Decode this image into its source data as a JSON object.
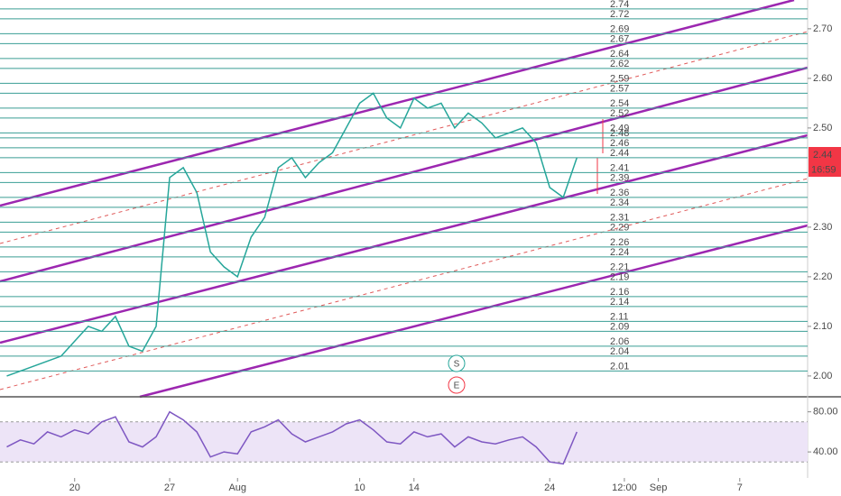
{
  "chart_data": [
    {
      "type": "line",
      "x": [
        -5,
        -4,
        -3,
        -2,
        -1,
        0,
        1,
        2,
        3,
        4,
        5,
        6,
        7,
        8,
        9,
        10,
        11,
        12,
        13,
        14,
        15,
        16,
        17,
        18,
        19,
        20,
        21,
        22,
        23,
        24,
        25,
        26,
        27,
        28,
        29,
        30,
        31,
        32,
        33,
        34,
        35,
        36,
        37
      ],
      "values": [
        2.0,
        2.01,
        2.02,
        2.03,
        2.04,
        2.07,
        2.1,
        2.09,
        2.12,
        2.06,
        2.05,
        2.1,
        2.4,
        2.42,
        2.37,
        2.25,
        2.22,
        2.2,
        2.28,
        2.32,
        2.42,
        2.44,
        2.4,
        2.43,
        2.45,
        2.5,
        2.55,
        2.57,
        2.52,
        2.5,
        2.56,
        2.54,
        2.55,
        2.5,
        2.53,
        2.51,
        2.48,
        2.49,
        2.5,
        2.47,
        2.38,
        2.36,
        2.44
      ],
      "color": "#26a69a",
      "xlim": [
        -5.5,
        54
      ],
      "ylim": [
        1.958,
        2.758
      ],
      "xticks": [
        {
          "value": 0,
          "label": "20"
        },
        {
          "value": 7,
          "label": "27"
        },
        {
          "value": 12,
          "label": "Aug"
        },
        {
          "value": 21,
          "label": "10"
        },
        {
          "value": 25,
          "label": "14"
        },
        {
          "value": 35,
          "label": "24"
        },
        {
          "value": 40.5,
          "label": "12:00"
        },
        {
          "value": 43,
          "label": "Sep"
        },
        {
          "value": 49,
          "label": "7"
        }
      ],
      "yticks": [
        {
          "value": 2.0,
          "label": "2.00"
        },
        {
          "value": 2.1,
          "label": "2.10"
        },
        {
          "value": 2.2,
          "label": "2.20"
        },
        {
          "value": 2.3,
          "label": "2.30"
        },
        {
          "value": 2.5,
          "label": "2.50"
        },
        {
          "value": 2.6,
          "label": "2.60"
        },
        {
          "value": 2.7,
          "label": "2.70"
        }
      ],
      "levels": [
        2.74,
        2.72,
        2.69,
        2.67,
        2.64,
        2.62,
        2.59,
        2.57,
        2.54,
        2.52,
        2.49,
        2.48,
        2.46,
        2.44,
        2.41,
        2.39,
        2.36,
        2.34,
        2.31,
        2.29,
        2.26,
        2.24,
        2.21,
        2.19,
        2.16,
        2.14,
        2.11,
        2.09,
        2.06,
        2.04,
        2.01
      ],
      "level_color": "#3a9e94",
      "price_tag": "2.44",
      "countdown": "16:59",
      "markers": [
        "S",
        "E"
      ]
    },
    {
      "type": "line",
      "x": [
        -5,
        -4,
        -3,
        -2,
        -1,
        0,
        1,
        2,
        3,
        4,
        5,
        6,
        7,
        8,
        9,
        10,
        11,
        12,
        13,
        14,
        15,
        16,
        17,
        18,
        19,
        20,
        21,
        22,
        23,
        24,
        25,
        26,
        27,
        28,
        29,
        30,
        31,
        32,
        33,
        34,
        35,
        36,
        37
      ],
      "values": [
        45,
        52,
        48,
        60,
        55,
        62,
        58,
        70,
        75,
        50,
        45,
        55,
        80,
        72,
        60,
        35,
        40,
        38,
        60,
        65,
        72,
        58,
        50,
        55,
        60,
        68,
        72,
        62,
        50,
        48,
        60,
        55,
        58,
        45,
        55,
        50,
        48,
        52,
        55,
        45,
        30,
        28,
        60
      ],
      "color": "#7e57c2",
      "ylim": [
        14,
        95
      ],
      "yticks": [
        {
          "value": 80,
          "label": "80.00"
        },
        {
          "value": 40,
          "label": "40.00"
        }
      ],
      "band": [
        30,
        70
      ]
    }
  ]
}
